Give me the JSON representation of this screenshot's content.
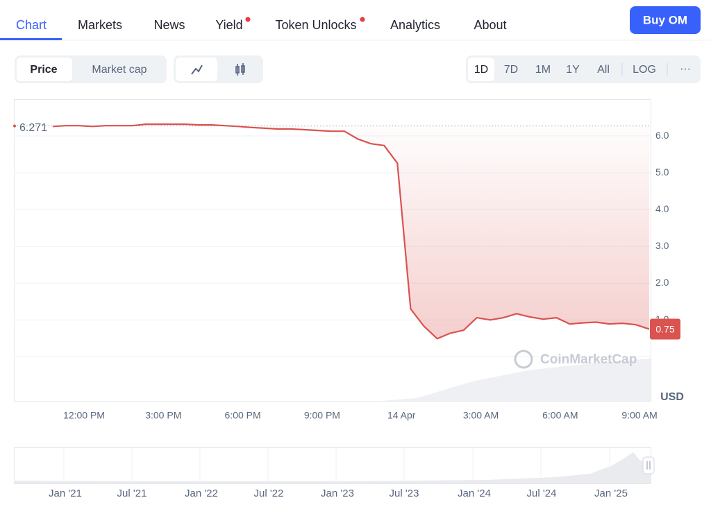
{
  "nav": {
    "tabs": [
      "Chart",
      "Markets",
      "News",
      "Yield",
      "Token Unlocks",
      "Analytics",
      "About"
    ],
    "button": "Buy OM"
  },
  "toolbar": {
    "modes": [
      "Price",
      "Market cap"
    ],
    "ranges": [
      "1D",
      "7D",
      "1M",
      "1Y",
      "All",
      "LOG"
    ],
    "more": "···"
  },
  "chart_data": {
    "type": "line",
    "color": "#d9534f",
    "values": [
      6.26,
      6.28,
      6.28,
      6.26,
      6.28,
      6.28,
      6.28,
      6.32,
      6.32,
      6.32,
      6.32,
      6.3,
      6.3,
      6.28,
      6.26,
      6.23,
      6.21,
      6.19,
      6.19,
      6.17,
      6.15,
      6.13,
      6.13,
      5.92,
      5.79,
      5.74,
      5.26,
      1.3,
      0.83,
      0.49,
      0.64,
      0.72,
      1.06,
      1.0,
      1.06,
      1.17,
      1.08,
      1.02,
      1.06,
      0.89,
      0.92,
      0.94,
      0.89,
      0.91,
      0.87,
      0.75
    ],
    "reference": 6.271,
    "last_value": 0.75,
    "ylim": [
      -1.2,
      7.0
    ],
    "yticks": [
      {
        "value": 1,
        "label": "1.0"
      },
      {
        "value": 2,
        "label": "2.0"
      },
      {
        "value": 3,
        "label": "3.0"
      },
      {
        "value": 4,
        "label": "4.0"
      },
      {
        "value": 5,
        "label": "5.0"
      },
      {
        "value": 6,
        "label": "6.0"
      }
    ],
    "grid": true,
    "x_labels": [
      "12:00 PM",
      "3:00 PM",
      "6:00 PM",
      "9:00 PM",
      "14 Apr",
      "3:00 AM",
      "6:00 AM",
      "9:00 AM"
    ],
    "unit": "USD",
    "watermark": "CoinMarketCap",
    "navigator_labels": [
      "Jan '21",
      "Jul '21",
      "Jan '22",
      "Jul '22",
      "Jan '23",
      "Jul '23",
      "Jan '24",
      "Jul '24",
      "Jan '25"
    ]
  }
}
